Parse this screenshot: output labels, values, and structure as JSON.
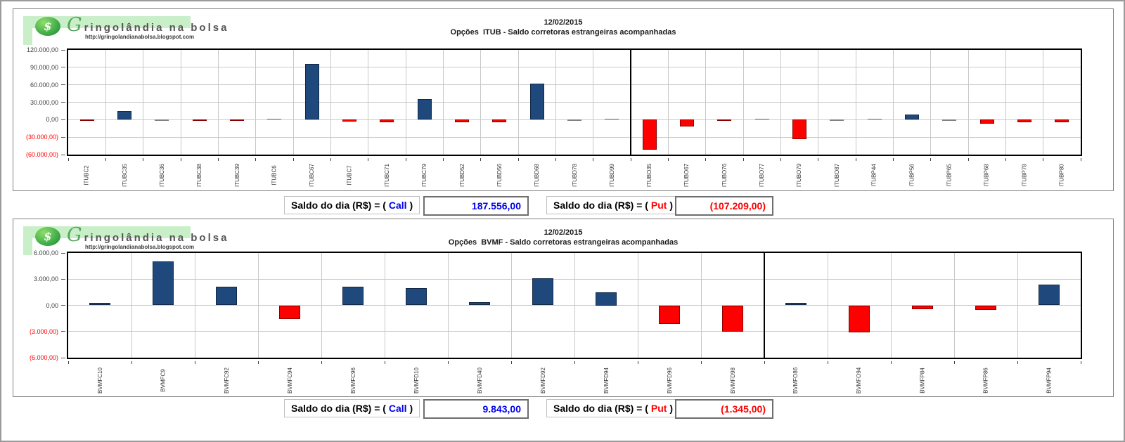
{
  "logo": {
    "site_name": "Gringolândia na bolsa",
    "site_url": "http://gringolandianabolsa.blogspot.com",
    "dollar_symbol": "$"
  },
  "summary": {
    "prefix": "Saldo do dia (R$) = (",
    "call_word": "Call",
    "put_word": "Put",
    "suffix": ")"
  },
  "colors": {
    "bar_positive": "#1F497D",
    "bar_negative": "#FF0000",
    "bar_tiny": "#808080",
    "call_value": "#0000EE",
    "put_value": "#FF0000"
  },
  "chart_data": [
    {
      "type": "bar",
      "date": "12/02/2015",
      "title": "Opções  ITUB - Saldo corretoras estrangeiras acompanhadas",
      "categories": [
        "ITUBC2",
        "ITUBC35",
        "ITUBC36",
        "ITUBC38",
        "ITUBC39",
        "ITUBC6",
        "ITUBC67",
        "ITUBC7",
        "ITUBC71",
        "ITUBC79",
        "ITUBD52",
        "ITUBD56",
        "ITUBD68",
        "ITUBD78",
        "ITUBD99",
        "ITUBO35",
        "ITUBO67",
        "ITUBO76",
        "ITUBO77",
        "ITUBO79",
        "ITUBO87",
        "ITUBP44",
        "ITUBP56",
        "ITUBP65",
        "ITUBP68",
        "ITUBP78",
        "ITUBP80"
      ],
      "values": [
        -2000,
        15500,
        -500,
        -2000,
        -2000,
        1000,
        95556,
        -3000,
        -4000,
        35000,
        -4000,
        -5000,
        62500,
        -1000,
        1500,
        -51000,
        -12000,
        -2500,
        500,
        -34000,
        -1000,
        800,
        9000,
        -800,
        -7209,
        -4000,
        -5000
      ],
      "ylim": [
        -60000,
        120000
      ],
      "ytick_step": 30000,
      "ytick_labels": [
        "120.000,00",
        "90.000,00",
        "60.000,00",
        "30.000,00",
        "0,00",
        "(30.000,00)",
        "(60.000,00)"
      ],
      "divider_after": 15,
      "grid": "on",
      "legend": "none",
      "call_total": "187.556,00",
      "put_total": "(107.209,00)"
    },
    {
      "type": "bar",
      "date": "12/02/2015",
      "title": "Opções  BVMF - Saldo corretoras estrangeiras acompanhadas",
      "categories": [
        "BVMFC10",
        "BVMFC9",
        "BVMFC92",
        "BVMFC94",
        "BVMFC96",
        "BVMFD10",
        "BVMFD40",
        "BVMFD92",
        "BVMFD94",
        "BVMFD96",
        "BVMFD98",
        "BVMFO86",
        "BVMFO94",
        "BVMFP84",
        "BVMFP86",
        "BVMFP94"
      ],
      "values": [
        300,
        5043,
        2100,
        -1600,
        2100,
        2000,
        400,
        3100,
        1500,
        -2100,
        -3000,
        300,
        -3100,
        -450,
        -500,
        2405
      ],
      "ylim": [
        -6000,
        6000
      ],
      "ytick_step": 3000,
      "ytick_labels": [
        "6.000,00",
        "3.000,00",
        "0,00",
        "(3.000,00)",
        "(6.000,00)"
      ],
      "divider_after": 11,
      "grid": "on",
      "legend": "none",
      "call_total": "9.843,00",
      "put_total": "(1.345,00)"
    }
  ]
}
